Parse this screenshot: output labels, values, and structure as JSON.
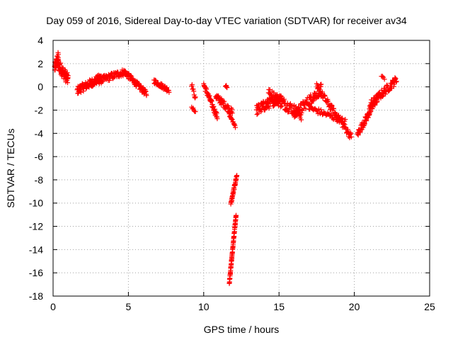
{
  "chart_data": {
    "type": "scatter",
    "title": "Day 059 of 2016, Sidereal Day-to-day VTEC variation (SDTVAR) for receiver av34",
    "xlabel": "GPS time / hours",
    "ylabel": "SDTVAR / TECUs",
    "xlim": [
      0,
      25
    ],
    "ylim": [
      -18,
      4
    ],
    "xticks": [
      0,
      5,
      10,
      15,
      20,
      25
    ],
    "yticks": [
      -18,
      -16,
      -14,
      -12,
      -10,
      -8,
      -6,
      -4,
      -2,
      0,
      2,
      4
    ],
    "grid": true,
    "marker": "plus",
    "color": "#ff0000",
    "series": [
      {
        "name": "av34",
        "segments": [
          {
            "x0": 0.1,
            "x1": 0.35,
            "y0": 1.6,
            "y1": 2.6,
            "spread": 0.9,
            "n": 40
          },
          {
            "x0": 0.3,
            "x1": 1.0,
            "y0": 2.0,
            "y1": 0.6,
            "spread": 1.0,
            "n": 60
          },
          {
            "x0": 1.6,
            "x1": 3.2,
            "y0": -0.3,
            "y1": 0.8,
            "spread": 0.7,
            "n": 90
          },
          {
            "x0": 2.5,
            "x1": 4.8,
            "y0": 0.3,
            "y1": 1.3,
            "spread": 0.6,
            "n": 90
          },
          {
            "x0": 4.8,
            "x1": 6.2,
            "y0": 1.2,
            "y1": -0.6,
            "spread": 0.5,
            "n": 70
          },
          {
            "x0": 6.7,
            "x1": 7.7,
            "y0": 0.5,
            "y1": -0.3,
            "spread": 0.4,
            "n": 45
          },
          {
            "x0": 9.2,
            "x1": 9.45,
            "y0": 0.2,
            "y1": -1.0,
            "spread": 0.3,
            "n": 10
          },
          {
            "x0": 9.2,
            "x1": 9.45,
            "y0": -1.8,
            "y1": -2.1,
            "spread": 0.2,
            "n": 6
          },
          {
            "x0": 10.0,
            "x1": 10.9,
            "y0": 0.2,
            "y1": -2.6,
            "spread": 0.5,
            "n": 50
          },
          {
            "x0": 10.8,
            "x1": 11.9,
            "y0": -0.8,
            "y1": -2.2,
            "spread": 0.6,
            "n": 50
          },
          {
            "x0": 11.7,
            "x1": 12.1,
            "y0": -2.4,
            "y1": -3.4,
            "spread": 0.2,
            "n": 15
          },
          {
            "x0": 11.45,
            "x1": 11.55,
            "y0": 0.1,
            "y1": 0.0,
            "spread": 0.2,
            "n": 5
          },
          {
            "x0": 11.8,
            "x1": 12.2,
            "y0": -10.1,
            "y1": -7.6,
            "spread": 0.3,
            "n": 40
          },
          {
            "x0": 11.7,
            "x1": 12.15,
            "y0": -16.9,
            "y1": -11.0,
            "spread": 0.2,
            "n": 70
          },
          {
            "x0": 13.5,
            "x1": 15.2,
            "y0": -2.0,
            "y1": -0.8,
            "spread": 0.9,
            "n": 90
          },
          {
            "x0": 14.3,
            "x1": 16.5,
            "y0": -0.6,
            "y1": -2.4,
            "spread": 1.0,
            "n": 90
          },
          {
            "x0": 16.0,
            "x1": 17.8,
            "y0": -2.4,
            "y1": -0.2,
            "spread": 0.9,
            "n": 80
          },
          {
            "x0": 17.5,
            "x1": 19.8,
            "y0": 0.0,
            "y1": -4.3,
            "spread": 0.6,
            "n": 80
          },
          {
            "x0": 17.0,
            "x1": 19.4,
            "y0": -1.8,
            "y1": -3.0,
            "spread": 0.5,
            "n": 50
          },
          {
            "x0": 20.2,
            "x1": 21.6,
            "y0": -4.1,
            "y1": -0.8,
            "spread": 0.6,
            "n": 70
          },
          {
            "x0": 21.0,
            "x1": 22.8,
            "y0": -1.6,
            "y1": 0.6,
            "spread": 0.7,
            "n": 70
          },
          {
            "x0": 21.8,
            "x1": 22.0,
            "y0": 1.0,
            "y1": 0.7,
            "spread": 0.2,
            "n": 4
          }
        ]
      }
    ]
  }
}
